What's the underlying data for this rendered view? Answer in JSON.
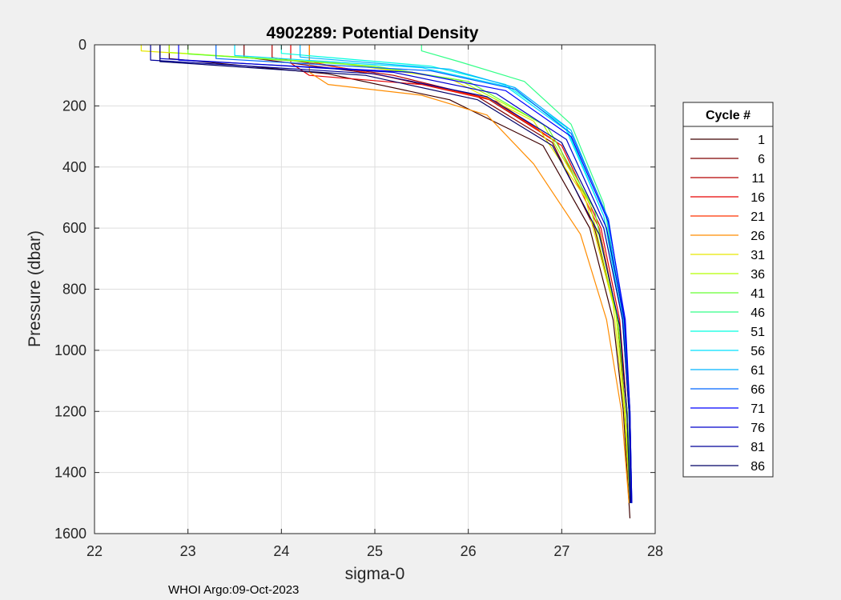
{
  "chart_data": {
    "type": "line",
    "title": "4902289: Potential Density",
    "xlabel": "sigma-0",
    "ylabel": "Pressure (dbar)",
    "xlim": [
      22,
      28
    ],
    "ylim": [
      0,
      1600
    ],
    "y_reversed": true,
    "grid": true,
    "x_ticks": [
      "22",
      "23",
      "24",
      "25",
      "26",
      "27",
      "28"
    ],
    "y_ticks": [
      "0",
      "200",
      "400",
      "600",
      "800",
      "1000",
      "1200",
      "1400",
      "1600"
    ],
    "legend": {
      "title": "Cycle #",
      "placement": "right-outside",
      "entries": [
        "1",
        "6",
        "11",
        "16",
        "21",
        "26",
        "31",
        "36",
        "41",
        "46",
        "51",
        "56",
        "61",
        "66",
        "71",
        "76",
        "81",
        "86"
      ]
    },
    "series": [
      {
        "name": "1",
        "color": "#3d0000",
        "x": [
          22.8,
          22.8,
          24.5,
          25.8,
          26.8,
          27.3,
          27.55,
          27.66,
          27.73
        ],
        "y": [
          0,
          45,
          95,
          180,
          330,
          600,
          900,
          1200,
          1550
        ]
      },
      {
        "name": "6",
        "color": "#7f0000",
        "x": [
          23.6,
          23.6,
          25.0,
          26.1,
          26.9,
          27.35,
          27.6,
          27.68,
          27.73
        ],
        "y": [
          0,
          40,
          95,
          170,
          320,
          600,
          900,
          1200,
          1500
        ]
      },
      {
        "name": "11",
        "color": "#b30000",
        "x": [
          23.9,
          23.9,
          25.2,
          26.2,
          26.95,
          27.4,
          27.6,
          27.7,
          27.73
        ],
        "y": [
          0,
          42,
          100,
          175,
          320,
          600,
          900,
          1200,
          1500
        ]
      },
      {
        "name": "16",
        "color": "#e60000",
        "x": [
          24.1,
          24.1,
          24.3,
          25.5,
          26.3,
          27.0,
          27.42,
          27.62,
          27.7,
          27.73
        ],
        "y": [
          0,
          60,
          100,
          130,
          185,
          330,
          600,
          900,
          1200,
          1500
        ]
      },
      {
        "name": "21",
        "color": "#ff3300",
        "x": [
          24.3,
          24.3,
          25.4,
          26.25,
          26.95,
          27.4,
          27.6,
          27.7,
          27.73
        ],
        "y": [
          0,
          55,
          120,
          180,
          320,
          600,
          900,
          1200,
          1500
        ]
      },
      {
        "name": "26",
        "color": "#ff8c00",
        "x": [
          24.3,
          24.3,
          24.5,
          25.5,
          26.2,
          26.7,
          27.2,
          27.48,
          27.64,
          27.72
        ],
        "y": [
          0,
          90,
          130,
          165,
          230,
          390,
          620,
          900,
          1200,
          1500
        ]
      },
      {
        "name": "31",
        "color": "#e6e600",
        "x": [
          22.5,
          22.5,
          24.6,
          25.8,
          26.7,
          27.25,
          27.55,
          27.67,
          27.73
        ],
        "y": [
          0,
          20,
          60,
          110,
          250,
          500,
          850,
          1200,
          1500
        ]
      },
      {
        "name": "36",
        "color": "#b3ff00",
        "x": [
          22.8,
          22.8,
          24.8,
          25.9,
          26.8,
          27.3,
          27.58,
          27.68,
          27.73
        ],
        "y": [
          0,
          25,
          65,
          115,
          260,
          520,
          880,
          1200,
          1500
        ]
      },
      {
        "name": "41",
        "color": "#66ff33",
        "x": [
          23.0,
          23.0,
          25.0,
          26.0,
          26.85,
          27.35,
          27.6,
          27.7,
          27.74
        ],
        "y": [
          0,
          30,
          70,
          120,
          270,
          540,
          900,
          1200,
          1500
        ]
      },
      {
        "name": "46",
        "color": "#33ff88",
        "x": [
          25.5,
          25.5,
          25.9,
          26.6,
          27.1,
          27.45,
          27.65,
          27.72,
          27.74
        ],
        "y": [
          0,
          20,
          55,
          120,
          260,
          520,
          880,
          1200,
          1500
        ]
      },
      {
        "name": "51",
        "color": "#00ffe0",
        "x": [
          24.0,
          24.0,
          25.6,
          26.4,
          27.05,
          27.45,
          27.65,
          27.72,
          27.74
        ],
        "y": [
          0,
          28,
          70,
          130,
          270,
          560,
          900,
          1200,
          1500
        ]
      },
      {
        "name": "56",
        "color": "#00e0ff",
        "x": [
          23.5,
          23.5,
          25.5,
          26.4,
          27.05,
          27.45,
          27.65,
          27.72,
          27.74
        ],
        "y": [
          0,
          35,
          75,
          135,
          280,
          560,
          900,
          1200,
          1500
        ]
      },
      {
        "name": "61",
        "color": "#00b3ff",
        "x": [
          24.2,
          24.2,
          25.8,
          26.5,
          27.1,
          27.48,
          27.66,
          27.72,
          27.74
        ],
        "y": [
          0,
          40,
          80,
          140,
          280,
          560,
          900,
          1200,
          1500
        ]
      },
      {
        "name": "66",
        "color": "#0066ff",
        "x": [
          23.3,
          23.3,
          25.6,
          26.5,
          27.1,
          27.5,
          27.67,
          27.73,
          27.75
        ],
        "y": [
          0,
          45,
          85,
          145,
          290,
          570,
          900,
          1200,
          1500
        ]
      },
      {
        "name": "71",
        "color": "#0000ff",
        "x": [
          22.9,
          22.9,
          25.4,
          26.4,
          27.1,
          27.5,
          27.68,
          27.73,
          27.75
        ],
        "y": [
          0,
          50,
          90,
          150,
          300,
          580,
          900,
          1200,
          1500
        ]
      },
      {
        "name": "76",
        "color": "#0000cc",
        "x": [
          22.7,
          22.7,
          25.2,
          26.3,
          27.05,
          27.48,
          27.67,
          27.73,
          27.75
        ],
        "y": [
          0,
          45,
          90,
          160,
          310,
          600,
          900,
          1200,
          1500
        ]
      },
      {
        "name": "81",
        "color": "#000099",
        "x": [
          22.6,
          22.6,
          25.0,
          26.2,
          27.0,
          27.45,
          27.65,
          27.72,
          27.74
        ],
        "y": [
          0,
          50,
          95,
          170,
          320,
          600,
          900,
          1200,
          1500
        ]
      },
      {
        "name": "86",
        "color": "#000066",
        "x": [
          22.7,
          22.7,
          24.9,
          26.1,
          26.9,
          27.4,
          27.62,
          27.7,
          27.73
        ],
        "y": [
          0,
          55,
          100,
          180,
          330,
          620,
          920,
          1220,
          1500
        ]
      }
    ]
  },
  "footer": {
    "text": "WHOI Argo:09-Oct-2023"
  }
}
